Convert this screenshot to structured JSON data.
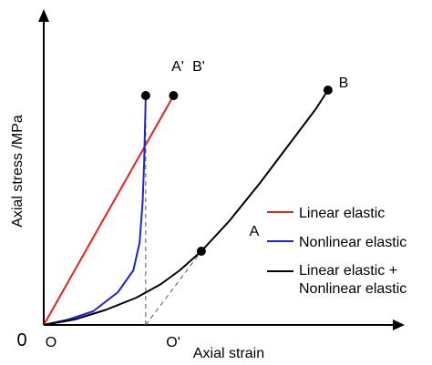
{
  "chart_data": {
    "type": "line",
    "title": "",
    "xlabel": "Axial strain",
    "ylabel": "Axial stress /MPa",
    "origin_label": "0",
    "grid": false,
    "ticks": {
      "x": [],
      "y": []
    },
    "legend": {
      "placement": "right",
      "entries": [
        {
          "label": "Linear elastic",
          "color": "#e8231f"
        },
        {
          "label": "Nonlinear elastic",
          "color": "#1f23d6"
        },
        {
          "label": "Linear elastic +\nNonlinear elastic",
          "color": "#000000"
        }
      ]
    },
    "point_labels": {
      "O": "O",
      "O_prime": "O'",
      "A": "A",
      "A_prime": "A'",
      "B": "B",
      "B_prime": "B'"
    },
    "series": [
      {
        "name": "Linear elastic",
        "color": "#e8231f",
        "points": [
          [
            0.0,
            0.0
          ],
          [
            0.42,
            0.84
          ]
        ]
      },
      {
        "name": "Nonlinear elastic",
        "color": "#1f23d6",
        "points": [
          [
            0.0,
            0.0
          ],
          [
            0.08,
            0.02
          ],
          [
            0.16,
            0.05
          ],
          [
            0.24,
            0.12
          ],
          [
            0.29,
            0.2
          ],
          [
            0.31,
            0.3
          ],
          [
            0.32,
            0.45
          ],
          [
            0.325,
            0.6
          ],
          [
            0.33,
            0.84
          ]
        ]
      },
      {
        "name": "Linear elastic +\nNonlinear elastic",
        "color": "#000000",
        "points": [
          [
            0.0,
            0.0
          ],
          [
            0.1,
            0.02
          ],
          [
            0.2,
            0.055
          ],
          [
            0.3,
            0.1
          ],
          [
            0.38,
            0.15
          ],
          [
            0.44,
            0.2
          ],
          [
            0.51,
            0.27
          ],
          [
            0.6,
            0.38
          ],
          [
            0.7,
            0.52
          ],
          [
            0.8,
            0.67
          ],
          [
            0.88,
            0.79
          ],
          [
            0.92,
            0.86
          ]
        ]
      }
    ],
    "markers": [
      {
        "label": "A'",
        "x": 0.33,
        "y": 0.84
      },
      {
        "label": "B'",
        "x": 0.42,
        "y": 0.84
      },
      {
        "label": "A",
        "x": 0.51,
        "y": 0.27
      },
      {
        "label": "B",
        "x": 0.92,
        "y": 0.86
      }
    ],
    "dashed_lines": [
      {
        "from": [
          0.33,
          0.0
        ],
        "to": [
          0.33,
          0.84
        ]
      },
      {
        "from": [
          0.33,
          0.0
        ],
        "to": [
          0.51,
          0.27
        ]
      }
    ],
    "xlim": [
      0,
      1
    ],
    "ylim": [
      0,
      1
    ]
  }
}
